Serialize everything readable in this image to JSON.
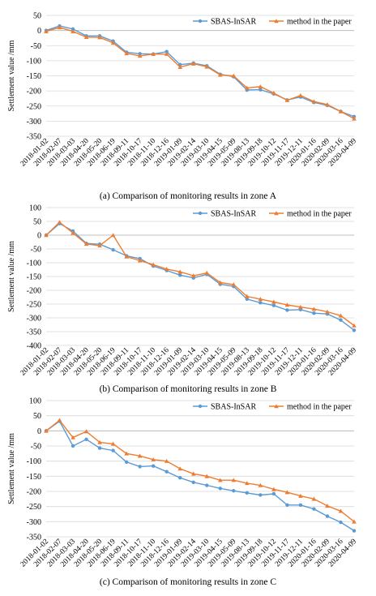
{
  "colors": {
    "sbas": "#5b9bd5",
    "method": "#ed7d31",
    "grid": "#d9d9d9",
    "axis": "#bfbfbf"
  },
  "chart_data": [
    {
      "type": "line",
      "caption": "(a) Comparison of monitoring results in zone A",
      "ylabel": "Settlement  value /mm",
      "ylim": [
        -350,
        50
      ],
      "yticks": [
        50,
        0,
        -50,
        -100,
        -150,
        -200,
        -250,
        -300,
        -350
      ],
      "x": [
        "2018-01-02",
        "2018-02-07",
        "2018-03-03",
        "2018-04-20",
        "2018-05-20",
        "2018-06-19",
        "2018-09-11",
        "2018-10-17",
        "2018-11-10",
        "2018-12-16",
        "2019-01-09",
        "2019-02-14",
        "2019-03-10",
        "2019-04-15",
        "2019-05-09",
        "2019-08-13",
        "2019-09-18",
        "2019-10-12",
        "2019-11-17",
        "2019-12-11",
        "2020-01-16",
        "2020-02-09",
        "2020-03-16",
        "2020-04-09"
      ],
      "legend": "top-right",
      "series": [
        {
          "name": "SBAS-InSAR",
          "values": [
            0,
            15,
            5,
            -18,
            -18,
            -35,
            -72,
            -77,
            -78,
            -70,
            -113,
            -108,
            -117,
            -145,
            -153,
            -197,
            -196,
            -210,
            -230,
            -220,
            -238,
            -248,
            -268,
            -285
          ]
        },
        {
          "name": "method in the paper",
          "values": [
            -3,
            10,
            -3,
            -22,
            -23,
            -41,
            -76,
            -84,
            -78,
            -78,
            -121,
            -110,
            -120,
            -147,
            -150,
            -190,
            -186,
            -207,
            -231,
            -215,
            -235,
            -245,
            -268,
            -292
          ]
        }
      ]
    },
    {
      "type": "line",
      "caption": "(b) Comparison of monitoring results in zone B",
      "ylabel": "Settlement  value /mm",
      "ylim": [
        -400,
        100
      ],
      "yticks": [
        100,
        50,
        0,
        -50,
        -100,
        -150,
        -200,
        -250,
        -300,
        -350,
        -400
      ],
      "x": [
        "2018-01-02",
        "2018-02-07",
        "2018-03-03",
        "2018-04-20",
        "2018-05-20",
        "2018-06-19",
        "2018-09-11",
        "2018-10-17",
        "2018-11-10",
        "2018-12-16",
        "2019-01-09",
        "2019-02-14",
        "2019-03-10",
        "2019-04-15",
        "2019-05-09",
        "2019-08-13",
        "2019-09-18",
        "2019-10-12",
        "2019-11-17",
        "2019-12-11",
        "2020-01-16",
        "2020-02-09",
        "2020-03-16",
        "2020-04-09"
      ],
      "legend": "top-right",
      "series": [
        {
          "name": "SBAS-InSAR",
          "values": [
            0,
            42,
            15,
            -30,
            -33,
            -53,
            -75,
            -85,
            -112,
            -128,
            -145,
            -155,
            -142,
            -178,
            -186,
            -232,
            -245,
            -255,
            -272,
            -270,
            -283,
            -286,
            -308,
            -345
          ]
        },
        {
          "name": "method in the paper",
          "values": [
            0,
            47,
            8,
            -32,
            -38,
            0,
            -78,
            -92,
            -107,
            -123,
            -133,
            -147,
            -137,
            -172,
            -179,
            -222,
            -232,
            -242,
            -253,
            -261,
            -268,
            -278,
            -292,
            -328
          ]
        }
      ]
    },
    {
      "type": "line",
      "caption": "(c) Comparison of monitoring results in zone C",
      "ylabel": "Settlement  value /mm",
      "ylim": [
        -350,
        100
      ],
      "yticks": [
        100,
        50,
        0,
        -50,
        -100,
        -150,
        -200,
        -250,
        -300,
        -350
      ],
      "x": [
        "2018-01-02",
        "2018-02-07",
        "2018-03-03",
        "2018-04-20",
        "2018-05-20",
        "2018-06-19",
        "2018-09-11",
        "2018-10-17",
        "2018-11-10",
        "2018-12-16",
        "2019-01-09",
        "2019-02-14",
        "2019-03-10",
        "2019-04-15",
        "2019-05-09",
        "2019-08-13",
        "2019-09-18",
        "2019-10-12",
        "2019-11-17",
        "2019-12-11",
        "2020-01-16",
        "2020-02-09",
        "2020-03-16",
        "2020-04-09"
      ],
      "legend": "top-right",
      "series": [
        {
          "name": "SBAS-InSAR",
          "values": [
            0,
            32,
            -50,
            -28,
            -57,
            -65,
            -103,
            -118,
            -116,
            -135,
            -155,
            -170,
            -180,
            -190,
            -198,
            -205,
            -212,
            -208,
            -245,
            -245,
            -258,
            -282,
            -302,
            -330
          ]
        },
        {
          "name": "method in the paper",
          "values": [
            0,
            35,
            -22,
            -2,
            -38,
            -43,
            -75,
            -83,
            -95,
            -100,
            -125,
            -142,
            -150,
            -163,
            -163,
            -173,
            -180,
            -193,
            -203,
            -215,
            -225,
            -248,
            -265,
            -300
          ]
        }
      ]
    }
  ]
}
